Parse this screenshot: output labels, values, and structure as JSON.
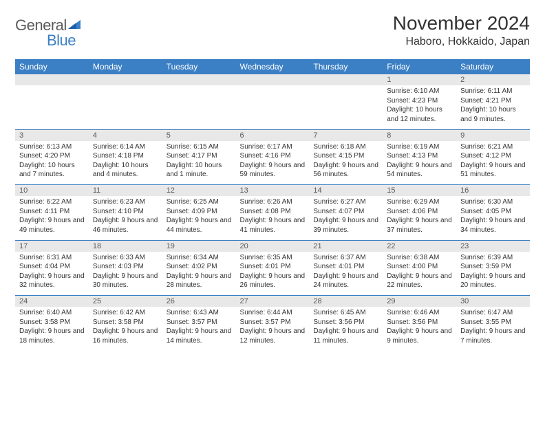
{
  "logo": {
    "text1": "General",
    "text2": "Blue"
  },
  "title": "November 2024",
  "location": "Haboro, Hokkaido, Japan",
  "colors": {
    "header_bg": "#3b7fc4",
    "header_text": "#ffffff",
    "daynum_bg": "#e8e8e8",
    "daynum_text": "#5a5a5a",
    "body_text": "#333333",
    "row_divider": "#3b7fc4",
    "background": "#ffffff"
  },
  "typography": {
    "title_fontsize": 28,
    "location_fontsize": 16,
    "dayhead_fontsize": 12,
    "daynum_fontsize": 11,
    "cell_fontsize": 10
  },
  "day_headers": [
    "Sunday",
    "Monday",
    "Tuesday",
    "Wednesday",
    "Thursday",
    "Friday",
    "Saturday"
  ],
  "weeks": [
    {
      "nums": [
        "",
        "",
        "",
        "",
        "",
        "1",
        "2"
      ],
      "cells": [
        null,
        null,
        null,
        null,
        null,
        {
          "sunrise": "Sunrise: 6:10 AM",
          "sunset": "Sunset: 4:23 PM",
          "daylight": "Daylight: 10 hours and 12 minutes."
        },
        {
          "sunrise": "Sunrise: 6:11 AM",
          "sunset": "Sunset: 4:21 PM",
          "daylight": "Daylight: 10 hours and 9 minutes."
        }
      ]
    },
    {
      "nums": [
        "3",
        "4",
        "5",
        "6",
        "7",
        "8",
        "9"
      ],
      "cells": [
        {
          "sunrise": "Sunrise: 6:13 AM",
          "sunset": "Sunset: 4:20 PM",
          "daylight": "Daylight: 10 hours and 7 minutes."
        },
        {
          "sunrise": "Sunrise: 6:14 AM",
          "sunset": "Sunset: 4:18 PM",
          "daylight": "Daylight: 10 hours and 4 minutes."
        },
        {
          "sunrise": "Sunrise: 6:15 AM",
          "sunset": "Sunset: 4:17 PM",
          "daylight": "Daylight: 10 hours and 1 minute."
        },
        {
          "sunrise": "Sunrise: 6:17 AM",
          "sunset": "Sunset: 4:16 PM",
          "daylight": "Daylight: 9 hours and 59 minutes."
        },
        {
          "sunrise": "Sunrise: 6:18 AM",
          "sunset": "Sunset: 4:15 PM",
          "daylight": "Daylight: 9 hours and 56 minutes."
        },
        {
          "sunrise": "Sunrise: 6:19 AM",
          "sunset": "Sunset: 4:13 PM",
          "daylight": "Daylight: 9 hours and 54 minutes."
        },
        {
          "sunrise": "Sunrise: 6:21 AM",
          "sunset": "Sunset: 4:12 PM",
          "daylight": "Daylight: 9 hours and 51 minutes."
        }
      ]
    },
    {
      "nums": [
        "10",
        "11",
        "12",
        "13",
        "14",
        "15",
        "16"
      ],
      "cells": [
        {
          "sunrise": "Sunrise: 6:22 AM",
          "sunset": "Sunset: 4:11 PM",
          "daylight": "Daylight: 9 hours and 49 minutes."
        },
        {
          "sunrise": "Sunrise: 6:23 AM",
          "sunset": "Sunset: 4:10 PM",
          "daylight": "Daylight: 9 hours and 46 minutes."
        },
        {
          "sunrise": "Sunrise: 6:25 AM",
          "sunset": "Sunset: 4:09 PM",
          "daylight": "Daylight: 9 hours and 44 minutes."
        },
        {
          "sunrise": "Sunrise: 6:26 AM",
          "sunset": "Sunset: 4:08 PM",
          "daylight": "Daylight: 9 hours and 41 minutes."
        },
        {
          "sunrise": "Sunrise: 6:27 AM",
          "sunset": "Sunset: 4:07 PM",
          "daylight": "Daylight: 9 hours and 39 minutes."
        },
        {
          "sunrise": "Sunrise: 6:29 AM",
          "sunset": "Sunset: 4:06 PM",
          "daylight": "Daylight: 9 hours and 37 minutes."
        },
        {
          "sunrise": "Sunrise: 6:30 AM",
          "sunset": "Sunset: 4:05 PM",
          "daylight": "Daylight: 9 hours and 34 minutes."
        }
      ]
    },
    {
      "nums": [
        "17",
        "18",
        "19",
        "20",
        "21",
        "22",
        "23"
      ],
      "cells": [
        {
          "sunrise": "Sunrise: 6:31 AM",
          "sunset": "Sunset: 4:04 PM",
          "daylight": "Daylight: 9 hours and 32 minutes."
        },
        {
          "sunrise": "Sunrise: 6:33 AM",
          "sunset": "Sunset: 4:03 PM",
          "daylight": "Daylight: 9 hours and 30 minutes."
        },
        {
          "sunrise": "Sunrise: 6:34 AM",
          "sunset": "Sunset: 4:02 PM",
          "daylight": "Daylight: 9 hours and 28 minutes."
        },
        {
          "sunrise": "Sunrise: 6:35 AM",
          "sunset": "Sunset: 4:01 PM",
          "daylight": "Daylight: 9 hours and 26 minutes."
        },
        {
          "sunrise": "Sunrise: 6:37 AM",
          "sunset": "Sunset: 4:01 PM",
          "daylight": "Daylight: 9 hours and 24 minutes."
        },
        {
          "sunrise": "Sunrise: 6:38 AM",
          "sunset": "Sunset: 4:00 PM",
          "daylight": "Daylight: 9 hours and 22 minutes."
        },
        {
          "sunrise": "Sunrise: 6:39 AM",
          "sunset": "Sunset: 3:59 PM",
          "daylight": "Daylight: 9 hours and 20 minutes."
        }
      ]
    },
    {
      "nums": [
        "24",
        "25",
        "26",
        "27",
        "28",
        "29",
        "30"
      ],
      "cells": [
        {
          "sunrise": "Sunrise: 6:40 AM",
          "sunset": "Sunset: 3:58 PM",
          "daylight": "Daylight: 9 hours and 18 minutes."
        },
        {
          "sunrise": "Sunrise: 6:42 AM",
          "sunset": "Sunset: 3:58 PM",
          "daylight": "Daylight: 9 hours and 16 minutes."
        },
        {
          "sunrise": "Sunrise: 6:43 AM",
          "sunset": "Sunset: 3:57 PM",
          "daylight": "Daylight: 9 hours and 14 minutes."
        },
        {
          "sunrise": "Sunrise: 6:44 AM",
          "sunset": "Sunset: 3:57 PM",
          "daylight": "Daylight: 9 hours and 12 minutes."
        },
        {
          "sunrise": "Sunrise: 6:45 AM",
          "sunset": "Sunset: 3:56 PM",
          "daylight": "Daylight: 9 hours and 11 minutes."
        },
        {
          "sunrise": "Sunrise: 6:46 AM",
          "sunset": "Sunset: 3:56 PM",
          "daylight": "Daylight: 9 hours and 9 minutes."
        },
        {
          "sunrise": "Sunrise: 6:47 AM",
          "sunset": "Sunset: 3:55 PM",
          "daylight": "Daylight: 9 hours and 7 minutes."
        }
      ]
    }
  ]
}
